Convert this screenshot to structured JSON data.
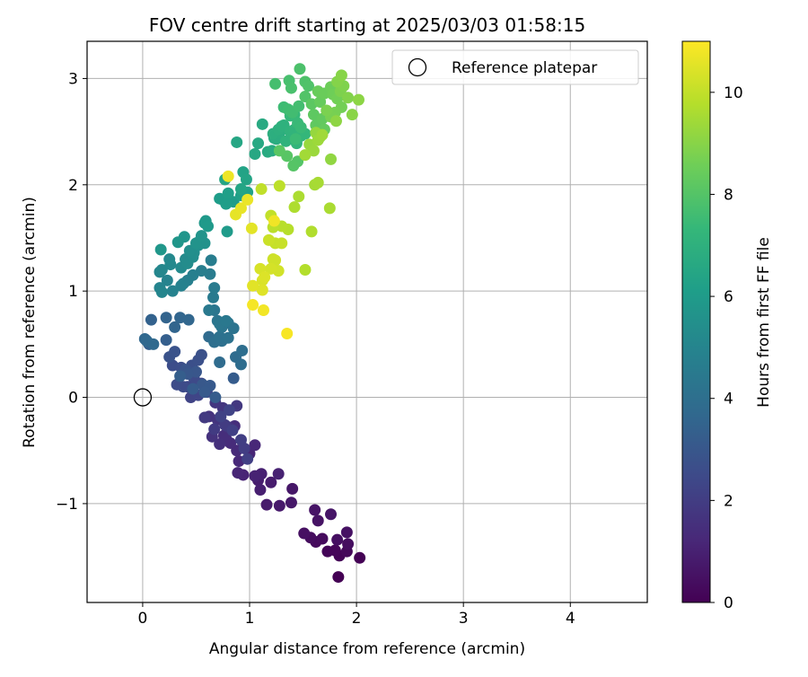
{
  "chart_data": {
    "type": "scatter",
    "title": "FOV centre drift starting at 2025/03/03 01:58:15",
    "xlabel": "Angular distance from reference (arcmin)",
    "ylabel": "Rotation from reference (arcmin)",
    "xlim": [
      -0.52,
      4.72
    ],
    "ylim": [
      -1.93,
      3.35
    ],
    "xticks": [
      0,
      1,
      2,
      3,
      4
    ],
    "xtick_labels": [
      "0",
      "1",
      "2",
      "3",
      "4"
    ],
    "yticks": [
      -1,
      0,
      1,
      2,
      3
    ],
    "ytick_labels": [
      "−1",
      "0",
      "1",
      "2",
      "3"
    ],
    "grid": true,
    "legend": {
      "position": "top-right",
      "label": "Reference platepar"
    },
    "reference_point": {
      "x": 0,
      "y": 0,
      "marker": "hollow-circle"
    },
    "colorbar": {
      "label": "Hours from first FF file",
      "colormap": "viridis",
      "range": [
        0,
        11
      ],
      "ticks": [
        0,
        2,
        4,
        6,
        8,
        10
      ],
      "tick_labels": [
        "0",
        "2",
        "4",
        "6",
        "8",
        "10"
      ]
    },
    "colormap_stops": [
      "#440154",
      "#482878",
      "#3e4989",
      "#31688e",
      "#26828e",
      "#1f9e89",
      "#35b779",
      "#6ece58",
      "#b5de2b",
      "#fde725"
    ],
    "series": [
      {
        "points": [
          [
            1.83,
            -1.69
          ],
          [
            2.03,
            -1.51
          ],
          [
            1.84,
            -1.49
          ],
          [
            1.73,
            -1.45
          ],
          [
            1.8,
            -1.44
          ],
          [
            1.91,
            -1.45
          ],
          [
            1.62,
            -1.36
          ],
          [
            1.68,
            -1.33
          ],
          [
            1.57,
            -1.32
          ],
          [
            1.92,
            -1.38
          ],
          [
            1.82,
            -1.34
          ],
          [
            1.51,
            -1.28
          ],
          [
            1.91,
            -1.27
          ],
          [
            1.64,
            -1.16
          ],
          [
            1.61,
            -1.06
          ],
          [
            1.76,
            -1.1
          ],
          [
            1.4,
            -0.86
          ],
          [
            1.39,
            -0.99
          ],
          [
            1.28,
            -1.02
          ],
          [
            1.16,
            -1.01
          ],
          [
            1.2,
            -0.8
          ],
          [
            1.08,
            -0.78
          ],
          [
            1.1,
            -0.87
          ],
          [
            1.11,
            -0.72
          ],
          [
            1.27,
            -0.72
          ],
          [
            1.05,
            -0.74
          ],
          [
            0.94,
            -0.73
          ],
          [
            0.89,
            -0.71
          ],
          [
            1.0,
            -0.53
          ],
          [
            1.05,
            -0.45
          ],
          [
            0.9,
            -0.6
          ],
          [
            0.88,
            -0.5
          ],
          [
            0.82,
            -0.43
          ],
          [
            0.78,
            -0.39
          ],
          [
            0.76,
            -0.36
          ],
          [
            0.86,
            -0.27
          ],
          [
            0.72,
            -0.44
          ],
          [
            0.65,
            -0.37
          ],
          [
            0.62,
            -0.18
          ],
          [
            0.7,
            -0.21
          ],
          [
            0.8,
            -0.28
          ],
          [
            0.75,
            -0.1
          ],
          [
            0.68,
            -0.05
          ],
          [
            0.88,
            -0.08
          ],
          [
            0.58,
            -0.19
          ],
          [
            0.67,
            -0.3
          ],
          [
            0.77,
            -0.26
          ],
          [
            0.95,
            -0.48
          ],
          [
            0.92,
            -0.4
          ],
          [
            0.98,
            -0.58
          ],
          [
            0.84,
            -0.31
          ],
          [
            0.73,
            -0.18
          ],
          [
            0.81,
            -0.12
          ],
          [
            0.45,
            0.0
          ],
          [
            0.52,
            0.02
          ],
          [
            0.6,
            0.05
          ],
          [
            0.42,
            0.1
          ],
          [
            0.55,
            0.13
          ],
          [
            0.48,
            0.18
          ],
          [
            0.38,
            0.1
          ],
          [
            0.32,
            0.12
          ],
          [
            0.28,
            0.3
          ],
          [
            0.36,
            0.28
          ],
          [
            0.46,
            0.3
          ],
          [
            0.52,
            0.35
          ],
          [
            0.55,
            0.4
          ],
          [
            0.25,
            0.38
          ],
          [
            0.3,
            0.43
          ],
          [
            0.4,
            0.26
          ],
          [
            0.5,
            0.24
          ],
          [
            0.42,
            0.22
          ],
          [
            0.56,
            0.12
          ],
          [
            0.63,
            0.11
          ],
          [
            0.58,
            0.05
          ],
          [
            0.47,
            0.08
          ],
          [
            0.85,
            0.18
          ],
          [
            0.68,
            0.0
          ],
          [
            0.35,
            0.2
          ],
          [
            0.22,
            0.54
          ],
          [
            0.06,
            0.5
          ],
          [
            0.03,
            0.54
          ],
          [
            0.08,
            0.73
          ],
          [
            0.22,
            0.75
          ],
          [
            0.3,
            0.66
          ],
          [
            0.35,
            0.75
          ],
          [
            0.43,
            0.73
          ],
          [
            0.02,
            0.55
          ],
          [
            0.04,
            0.53
          ],
          [
            0.1,
            0.5
          ],
          [
            0.62,
            0.57
          ],
          [
            0.72,
            0.33
          ],
          [
            0.87,
            0.38
          ],
          [
            0.92,
            0.31
          ],
          [
            0.93,
            0.44
          ],
          [
            0.67,
            0.52
          ],
          [
            0.74,
            0.53
          ],
          [
            0.72,
            0.57
          ],
          [
            0.8,
            0.56
          ],
          [
            0.85,
            0.65
          ],
          [
            0.8,
            0.7
          ],
          [
            0.74,
            0.66
          ],
          [
            0.7,
            0.72
          ],
          [
            0.67,
            0.82
          ],
          [
            0.72,
            0.69
          ],
          [
            0.78,
            0.72
          ],
          [
            0.62,
            0.82
          ],
          [
            0.66,
            0.94
          ],
          [
            0.67,
            1.03
          ],
          [
            0.63,
            1.16
          ],
          [
            0.64,
            1.29
          ],
          [
            0.55,
            1.19
          ],
          [
            0.47,
            1.15
          ],
          [
            0.42,
            1.1
          ],
          [
            0.38,
            1.07
          ],
          [
            0.36,
            1.05
          ],
          [
            0.28,
            1.0
          ],
          [
            0.23,
            1.1
          ],
          [
            0.16,
            1.03
          ],
          [
            0.18,
            0.99
          ],
          [
            0.16,
            1.18
          ],
          [
            0.18,
            1.2
          ],
          [
            0.26,
            1.25
          ],
          [
            0.25,
            1.3
          ],
          [
            0.36,
            1.22
          ],
          [
            0.4,
            1.3
          ],
          [
            0.42,
            1.26
          ],
          [
            0.47,
            1.32
          ],
          [
            0.48,
            1.36
          ],
          [
            0.44,
            1.38
          ],
          [
            0.52,
            1.43
          ],
          [
            0.54,
            1.48
          ],
          [
            0.58,
            1.45
          ],
          [
            0.5,
            1.45
          ],
          [
            0.55,
            1.52
          ],
          [
            0.39,
            1.51
          ],
          [
            0.33,
            1.46
          ],
          [
            0.17,
            1.39
          ],
          [
            0.58,
            1.64
          ],
          [
            0.59,
            1.66
          ],
          [
            0.61,
            1.61
          ],
          [
            0.79,
            1.56
          ],
          [
            0.85,
            1.84
          ],
          [
            0.75,
            1.86
          ],
          [
            0.72,
            1.87
          ],
          [
            0.78,
            1.82
          ],
          [
            0.8,
            1.92
          ],
          [
            0.92,
            1.9
          ],
          [
            0.95,
            1.93
          ],
          [
            0.98,
            1.93
          ],
          [
            0.94,
            2.12
          ],
          [
            0.97,
            2.05
          ],
          [
            0.92,
            1.96
          ],
          [
            0.77,
            2.05
          ],
          [
            0.88,
            2.4
          ],
          [
            1.05,
            2.29
          ],
          [
            1.08,
            2.39
          ],
          [
            1.12,
            2.57
          ],
          [
            1.17,
            2.31
          ],
          [
            1.21,
            2.32
          ],
          [
            1.23,
            2.44
          ],
          [
            1.25,
            2.43
          ],
          [
            1.28,
            2.49
          ],
          [
            1.22,
            2.48
          ],
          [
            1.27,
            2.52
          ],
          [
            1.3,
            2.55
          ],
          [
            1.32,
            2.56
          ],
          [
            1.34,
            2.41
          ],
          [
            1.38,
            2.5
          ],
          [
            1.42,
            2.52
          ],
          [
            1.44,
            2.39
          ],
          [
            1.48,
            2.46
          ],
          [
            1.52,
            2.48
          ],
          [
            1.38,
            2.65
          ],
          [
            1.42,
            2.66
          ],
          [
            1.45,
            2.58
          ],
          [
            1.48,
            2.54
          ],
          [
            1.43,
            2.43
          ],
          [
            1.32,
            2.73
          ],
          [
            1.36,
            2.71
          ],
          [
            1.4,
            2.68
          ],
          [
            1.46,
            2.74
          ],
          [
            1.24,
            2.95
          ],
          [
            1.37,
            2.98
          ],
          [
            1.39,
            2.91
          ],
          [
            1.47,
            3.09
          ],
          [
            1.52,
            2.97
          ],
          [
            1.55,
            2.93
          ],
          [
            1.52,
            2.83
          ],
          [
            1.45,
            2.22
          ],
          [
            1.41,
            2.18
          ],
          [
            1.35,
            2.27
          ],
          [
            1.28,
            2.32
          ],
          [
            1.58,
            2.76
          ],
          [
            1.6,
            2.66
          ],
          [
            1.62,
            2.56
          ],
          [
            1.68,
            2.62
          ],
          [
            1.7,
            2.52
          ],
          [
            1.66,
            2.78
          ],
          [
            1.64,
            2.88
          ],
          [
            1.7,
            2.86
          ],
          [
            1.76,
            2.92
          ],
          [
            1.78,
            2.85
          ],
          [
            1.82,
            2.81
          ],
          [
            1.86,
            2.73
          ],
          [
            1.8,
            2.68
          ],
          [
            1.76,
            2.64
          ],
          [
            1.72,
            2.7
          ],
          [
            1.85,
            2.88
          ],
          [
            1.88,
            2.93
          ],
          [
            1.92,
            2.82
          ],
          [
            1.82,
            2.97
          ],
          [
            1.86,
            3.03
          ],
          [
            1.96,
            2.66
          ],
          [
            2.02,
            2.8
          ],
          [
            1.81,
            2.6
          ],
          [
            1.76,
            2.24
          ],
          [
            1.66,
            2.45
          ],
          [
            1.62,
            2.49
          ],
          [
            1.56,
            2.38
          ],
          [
            1.6,
            2.32
          ],
          [
            1.64,
            2.42
          ],
          [
            1.68,
            2.47
          ],
          [
            1.52,
            2.28
          ],
          [
            1.61,
            2.0
          ],
          [
            1.64,
            2.02
          ],
          [
            1.75,
            1.78
          ],
          [
            1.46,
            1.89
          ],
          [
            1.42,
            1.79
          ],
          [
            1.58,
            1.56
          ],
          [
            1.52,
            1.2
          ],
          [
            1.36,
            1.58
          ],
          [
            1.3,
            1.61
          ],
          [
            1.22,
            1.6
          ],
          [
            1.28,
            1.99
          ],
          [
            1.11,
            1.96
          ],
          [
            1.2,
            1.71
          ],
          [
            1.24,
            1.45
          ],
          [
            1.3,
            1.45
          ],
          [
            1.18,
            1.48
          ],
          [
            1.22,
            1.3
          ],
          [
            1.24,
            1.29
          ],
          [
            1.27,
            1.19
          ],
          [
            1.2,
            1.21
          ],
          [
            1.1,
            1.21
          ],
          [
            1.12,
            1.1
          ],
          [
            1.14,
            1.13
          ],
          [
            1.12,
            1.01
          ],
          [
            1.03,
            1.05
          ],
          [
            1.02,
            1.59
          ],
          [
            0.87,
            1.72
          ],
          [
            0.92,
            1.78
          ],
          [
            0.98,
            1.86
          ],
          [
            0.8,
            2.08
          ],
          [
            1.23,
            1.66
          ],
          [
            1.13,
            0.82
          ],
          [
            1.03,
            0.87
          ],
          [
            1.35,
            0.6
          ]
        ]
      }
    ]
  }
}
